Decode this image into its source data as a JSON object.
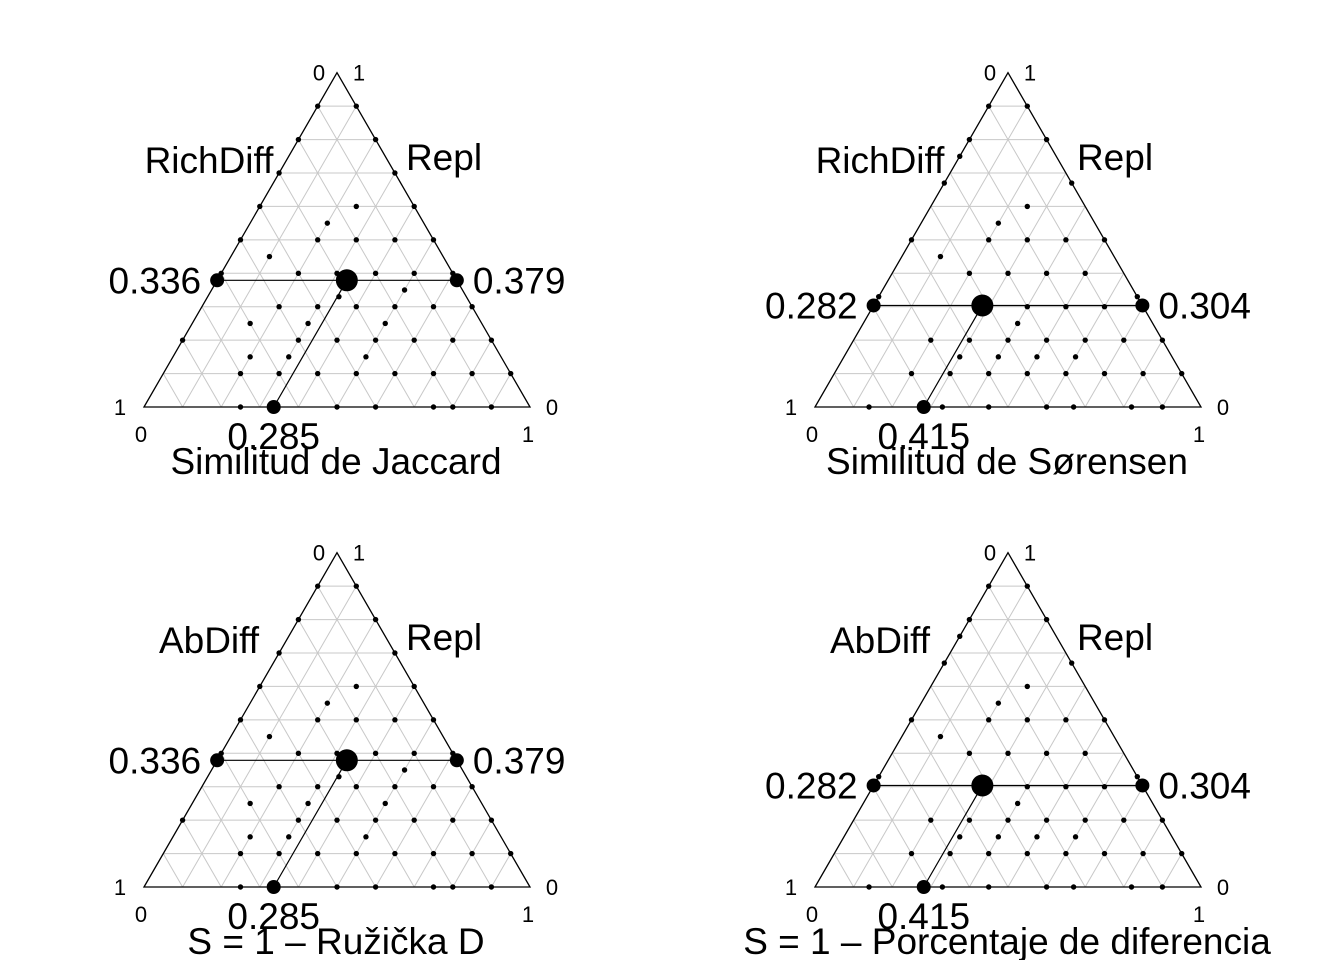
{
  "chart_data": [
    {
      "type": "scatter",
      "subtype": "ternary",
      "title": "Similitud de Jaccard",
      "labels": {
        "left": "RichDiff",
        "right": "Repl"
      },
      "axis_values": {
        "bottom_left": "0",
        "bottom_right": "1",
        "top_left": "0",
        "top_right": "1",
        "left_bottom": "1",
        "right_bottom": "0"
      },
      "mean": {
        "similarity": 0.285,
        "difference": 0.336,
        "replacement": 0.379
      },
      "mean_labels": {
        "similarity": "0.285",
        "difference": "0.336",
        "replacement": "0.379"
      },
      "grid": true,
      "points": [
        [
          0.8,
          0.2,
          0.0
        ],
        [
          0.6,
          0.4,
          0.0
        ],
        [
          0.5,
          0.5,
          0.0
        ],
        [
          0.4,
          0.6,
          0.0
        ],
        [
          0.3,
          0.7,
          0.0
        ],
        [
          0.2,
          0.8,
          0.0
        ],
        [
          0.1,
          0.9,
          0.0
        ],
        [
          0.0,
          0.9,
          0.1
        ],
        [
          0.0,
          0.8,
          0.2
        ],
        [
          0.0,
          0.7,
          0.3
        ],
        [
          0.0,
          0.6,
          0.4
        ],
        [
          0.0,
          0.5,
          0.5
        ],
        [
          0.0,
          0.4,
          0.6
        ],
        [
          0.0,
          0.3,
          0.7
        ],
        [
          0.0,
          0.2,
          0.8
        ],
        [
          0.0,
          0.1,
          0.9
        ],
        [
          0.75,
          0.0,
          0.25
        ],
        [
          0.5,
          0.0,
          0.5
        ],
        [
          0.4,
          0.0,
          0.6
        ],
        [
          0.25,
          0.0,
          0.75
        ],
        [
          0.2,
          0.0,
          0.8
        ],
        [
          0.1,
          0.0,
          0.9
        ],
        [
          0.4,
          0.2,
          0.4
        ],
        [
          0.3,
          0.2,
          0.5
        ],
        [
          0.2,
          0.2,
          0.6
        ],
        [
          0.1,
          0.2,
          0.7
        ],
        [
          0.5,
          0.2,
          0.3
        ],
        [
          0.4,
          0.3,
          0.3
        ],
        [
          0.3,
          0.3,
          0.4
        ],
        [
          0.2,
          0.3,
          0.5
        ],
        [
          0.1,
          0.3,
          0.6
        ],
        [
          0.3,
          0.4,
          0.3
        ],
        [
          0.2,
          0.4,
          0.4
        ],
        [
          0.1,
          0.4,
          0.5
        ],
        [
          0.2,
          0.5,
          0.3
        ],
        [
          0.1,
          0.5,
          0.4
        ],
        [
          0.6,
          0.1,
          0.3
        ],
        [
          0.5,
          0.1,
          0.4
        ],
        [
          0.4,
          0.1,
          0.5
        ],
        [
          0.3,
          0.1,
          0.6
        ],
        [
          0.2,
          0.1,
          0.7
        ],
        [
          0.1,
          0.1,
          0.8
        ],
        [
          0.35,
          0.15,
          0.5
        ],
        [
          0.25,
          0.25,
          0.5
        ],
        [
          0.45,
          0.25,
          0.3
        ],
        [
          0.15,
          0.35,
          0.5
        ],
        [
          0.55,
          0.15,
          0.3
        ],
        [
          0.3,
          0.5,
          0.2
        ],
        [
          0.4,
          0.4,
          0.2
        ],
        [
          0.5,
          0.3,
          0.2
        ],
        [
          0.15,
          0.6,
          0.25
        ],
        [
          0.25,
          0.55,
          0.2
        ],
        [
          0.65,
          0.15,
          0.2
        ],
        [
          0.7,
          0.1,
          0.2
        ],
        [
          0.6,
          0.25,
          0.15
        ],
        [
          0.45,
          0.45,
          0.1
        ],
        [
          0.33,
          0.33,
          0.34
        ]
      ]
    },
    {
      "type": "scatter",
      "subtype": "ternary",
      "title": "Similitud de Sørensen",
      "labels": {
        "left": "RichDiff",
        "right": "Repl"
      },
      "axis_values": {
        "bottom_left": "0",
        "bottom_right": "1",
        "top_left": "0",
        "top_right": "1",
        "left_bottom": "1",
        "right_bottom": "0"
      },
      "mean": {
        "similarity": 0.415,
        "difference": 0.282,
        "replacement": 0.304
      },
      "mean_labels": {
        "similarity": "0.415",
        "difference": "0.282",
        "replacement": "0.304"
      },
      "grid": true,
      "points": [
        [
          0.67,
          0.33,
          0.0
        ],
        [
          0.5,
          0.5,
          0.0
        ],
        [
          0.33,
          0.67,
          0.0
        ],
        [
          0.25,
          0.75,
          0.0
        ],
        [
          0.2,
          0.8,
          0.0
        ],
        [
          0.1,
          0.9,
          0.0
        ],
        [
          0.0,
          0.9,
          0.1
        ],
        [
          0.0,
          0.8,
          0.2
        ],
        [
          0.0,
          0.67,
          0.33
        ],
        [
          0.0,
          0.5,
          0.5
        ],
        [
          0.0,
          0.33,
          0.67
        ],
        [
          0.0,
          0.2,
          0.8
        ],
        [
          0.0,
          0.1,
          0.9
        ],
        [
          0.86,
          0.0,
          0.14
        ],
        [
          0.67,
          0.0,
          0.33
        ],
        [
          0.55,
          0.0,
          0.45
        ],
        [
          0.4,
          0.0,
          0.6
        ],
        [
          0.33,
          0.0,
          0.67
        ],
        [
          0.18,
          0.0,
          0.82
        ],
        [
          0.1,
          0.0,
          0.9
        ],
        [
          0.5,
          0.1,
          0.4
        ],
        [
          0.4,
          0.1,
          0.5
        ],
        [
          0.3,
          0.1,
          0.6
        ],
        [
          0.2,
          0.1,
          0.7
        ],
        [
          0.1,
          0.1,
          0.8
        ],
        [
          0.6,
          0.1,
          0.3
        ],
        [
          0.5,
          0.2,
          0.3
        ],
        [
          0.4,
          0.2,
          0.4
        ],
        [
          0.3,
          0.2,
          0.5
        ],
        [
          0.2,
          0.2,
          0.6
        ],
        [
          0.1,
          0.2,
          0.7
        ],
        [
          0.6,
          0.2,
          0.2
        ],
        [
          0.7,
          0.1,
          0.2
        ],
        [
          0.45,
          0.15,
          0.4
        ],
        [
          0.35,
          0.15,
          0.5
        ],
        [
          0.25,
          0.15,
          0.6
        ],
        [
          0.55,
          0.15,
          0.3
        ],
        [
          0.4,
          0.3,
          0.3
        ],
        [
          0.3,
          0.3,
          0.4
        ],
        [
          0.2,
          0.3,
          0.5
        ],
        [
          0.1,
          0.3,
          0.6
        ],
        [
          0.3,
          0.4,
          0.3
        ],
        [
          0.2,
          0.4,
          0.4
        ],
        [
          0.1,
          0.4,
          0.5
        ],
        [
          0.2,
          0.5,
          0.3
        ],
        [
          0.1,
          0.5,
          0.4
        ],
        [
          0.3,
          0.5,
          0.2
        ],
        [
          0.4,
          0.4,
          0.2
        ],
        [
          0.15,
          0.6,
          0.25
        ],
        [
          0.25,
          0.55,
          0.2
        ],
        [
          0.45,
          0.45,
          0.1
        ],
        [
          0.35,
          0.25,
          0.4
        ]
      ]
    },
    {
      "type": "scatter",
      "subtype": "ternary",
      "title": "S = 1 – Ružička D",
      "labels": {
        "left": "AbDiff",
        "right": "Repl"
      },
      "axis_values": {
        "bottom_left": "0",
        "bottom_right": "1",
        "top_left": "0",
        "top_right": "1",
        "left_bottom": "1",
        "right_bottom": "0"
      },
      "mean": {
        "similarity": 0.285,
        "difference": 0.336,
        "replacement": 0.379
      },
      "mean_labels": {
        "similarity": "0.285",
        "difference": "0.336",
        "replacement": "0.379"
      },
      "grid": true,
      "points": [
        [
          0.8,
          0.2,
          0.0
        ],
        [
          0.6,
          0.4,
          0.0
        ],
        [
          0.5,
          0.5,
          0.0
        ],
        [
          0.4,
          0.6,
          0.0
        ],
        [
          0.3,
          0.7,
          0.0
        ],
        [
          0.2,
          0.8,
          0.0
        ],
        [
          0.1,
          0.9,
          0.0
        ],
        [
          0.0,
          0.9,
          0.1
        ],
        [
          0.0,
          0.8,
          0.2
        ],
        [
          0.0,
          0.7,
          0.3
        ],
        [
          0.0,
          0.6,
          0.4
        ],
        [
          0.0,
          0.5,
          0.5
        ],
        [
          0.0,
          0.4,
          0.6
        ],
        [
          0.0,
          0.3,
          0.7
        ],
        [
          0.0,
          0.2,
          0.8
        ],
        [
          0.0,
          0.1,
          0.9
        ],
        [
          0.75,
          0.0,
          0.25
        ],
        [
          0.5,
          0.0,
          0.5
        ],
        [
          0.4,
          0.0,
          0.6
        ],
        [
          0.25,
          0.0,
          0.75
        ],
        [
          0.2,
          0.0,
          0.8
        ],
        [
          0.1,
          0.0,
          0.9
        ],
        [
          0.4,
          0.2,
          0.4
        ],
        [
          0.3,
          0.2,
          0.5
        ],
        [
          0.2,
          0.2,
          0.6
        ],
        [
          0.1,
          0.2,
          0.7
        ],
        [
          0.5,
          0.2,
          0.3
        ],
        [
          0.4,
          0.3,
          0.3
        ],
        [
          0.3,
          0.3,
          0.4
        ],
        [
          0.2,
          0.3,
          0.5
        ],
        [
          0.1,
          0.3,
          0.6
        ],
        [
          0.3,
          0.4,
          0.3
        ],
        [
          0.2,
          0.4,
          0.4
        ],
        [
          0.1,
          0.4,
          0.5
        ],
        [
          0.2,
          0.5,
          0.3
        ],
        [
          0.1,
          0.5,
          0.4
        ],
        [
          0.6,
          0.1,
          0.3
        ],
        [
          0.5,
          0.1,
          0.4
        ],
        [
          0.4,
          0.1,
          0.5
        ],
        [
          0.3,
          0.1,
          0.6
        ],
        [
          0.2,
          0.1,
          0.7
        ],
        [
          0.1,
          0.1,
          0.8
        ],
        [
          0.35,
          0.15,
          0.5
        ],
        [
          0.25,
          0.25,
          0.5
        ],
        [
          0.45,
          0.25,
          0.3
        ],
        [
          0.15,
          0.35,
          0.5
        ],
        [
          0.55,
          0.15,
          0.3
        ],
        [
          0.3,
          0.5,
          0.2
        ],
        [
          0.4,
          0.4,
          0.2
        ],
        [
          0.5,
          0.3,
          0.2
        ],
        [
          0.15,
          0.6,
          0.25
        ],
        [
          0.25,
          0.55,
          0.2
        ],
        [
          0.65,
          0.15,
          0.2
        ],
        [
          0.7,
          0.1,
          0.2
        ],
        [
          0.6,
          0.25,
          0.15
        ],
        [
          0.45,
          0.45,
          0.1
        ],
        [
          0.33,
          0.33,
          0.34
        ]
      ]
    },
    {
      "type": "scatter",
      "subtype": "ternary",
      "title": "S = 1 – Porcentaje de diferencia",
      "labels": {
        "left": "AbDiff",
        "right": "Repl"
      },
      "axis_values": {
        "bottom_left": "0",
        "bottom_right": "1",
        "top_left": "0",
        "top_right": "1",
        "left_bottom": "1",
        "right_bottom": "0"
      },
      "mean": {
        "similarity": 0.415,
        "difference": 0.282,
        "replacement": 0.304
      },
      "mean_labels": {
        "similarity": "0.415",
        "difference": "0.282",
        "replacement": "0.304"
      },
      "grid": true,
      "points": [
        [
          0.67,
          0.33,
          0.0
        ],
        [
          0.5,
          0.5,
          0.0
        ],
        [
          0.33,
          0.67,
          0.0
        ],
        [
          0.25,
          0.75,
          0.0
        ],
        [
          0.2,
          0.8,
          0.0
        ],
        [
          0.1,
          0.9,
          0.0
        ],
        [
          0.0,
          0.9,
          0.1
        ],
        [
          0.0,
          0.8,
          0.2
        ],
        [
          0.0,
          0.67,
          0.33
        ],
        [
          0.0,
          0.5,
          0.5
        ],
        [
          0.0,
          0.33,
          0.67
        ],
        [
          0.0,
          0.2,
          0.8
        ],
        [
          0.0,
          0.1,
          0.9
        ],
        [
          0.86,
          0.0,
          0.14
        ],
        [
          0.67,
          0.0,
          0.33
        ],
        [
          0.55,
          0.0,
          0.45
        ],
        [
          0.4,
          0.0,
          0.6
        ],
        [
          0.33,
          0.0,
          0.67
        ],
        [
          0.18,
          0.0,
          0.82
        ],
        [
          0.1,
          0.0,
          0.9
        ],
        [
          0.5,
          0.1,
          0.4
        ],
        [
          0.4,
          0.1,
          0.5
        ],
        [
          0.3,
          0.1,
          0.6
        ],
        [
          0.2,
          0.1,
          0.7
        ],
        [
          0.1,
          0.1,
          0.8
        ],
        [
          0.6,
          0.1,
          0.3
        ],
        [
          0.5,
          0.2,
          0.3
        ],
        [
          0.4,
          0.2,
          0.4
        ],
        [
          0.3,
          0.2,
          0.5
        ],
        [
          0.2,
          0.2,
          0.6
        ],
        [
          0.1,
          0.2,
          0.7
        ],
        [
          0.6,
          0.2,
          0.2
        ],
        [
          0.7,
          0.1,
          0.2
        ],
        [
          0.45,
          0.15,
          0.4
        ],
        [
          0.35,
          0.15,
          0.5
        ],
        [
          0.25,
          0.15,
          0.6
        ],
        [
          0.55,
          0.15,
          0.3
        ],
        [
          0.4,
          0.3,
          0.3
        ],
        [
          0.3,
          0.3,
          0.4
        ],
        [
          0.2,
          0.3,
          0.5
        ],
        [
          0.1,
          0.3,
          0.6
        ],
        [
          0.3,
          0.4,
          0.3
        ],
        [
          0.2,
          0.4,
          0.4
        ],
        [
          0.1,
          0.4,
          0.5
        ],
        [
          0.2,
          0.5,
          0.3
        ],
        [
          0.1,
          0.5,
          0.4
        ],
        [
          0.3,
          0.5,
          0.2
        ],
        [
          0.4,
          0.4,
          0.2
        ],
        [
          0.15,
          0.6,
          0.25
        ],
        [
          0.25,
          0.55,
          0.2
        ],
        [
          0.45,
          0.45,
          0.1
        ],
        [
          0.35,
          0.25,
          0.4
        ]
      ]
    }
  ]
}
